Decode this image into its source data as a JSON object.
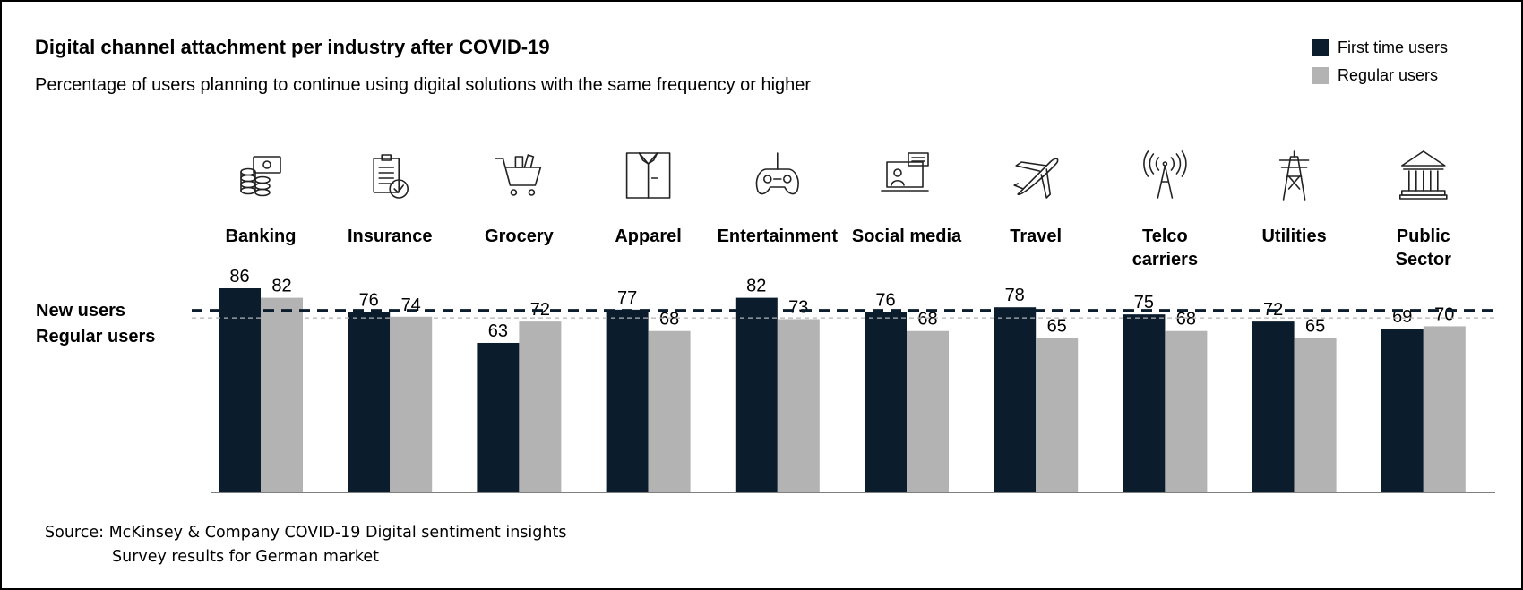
{
  "chart_data": {
    "type": "bar",
    "title": "Digital channel attachment per industry after COVID-19",
    "subtitle": "Percentage of users planning to continue using digital solutions with the same frequency or higher",
    "categories": [
      "Banking",
      "Insurance",
      "Grocery",
      "Apparel",
      "Entertainment",
      "Social media",
      "Travel",
      "Telco carriers",
      "Utilities",
      "Public Sector"
    ],
    "series": [
      {
        "name": "First time users",
        "color": "#0b1c2d",
        "values": [
          86,
          76,
          63,
          77,
          82,
          76,
          78,
          75,
          72,
          69
        ]
      },
      {
        "name": "Regular users",
        "color": "#b3b3b3",
        "values": [
          82,
          74,
          72,
          68,
          73,
          68,
          65,
          68,
          65,
          70
        ]
      }
    ],
    "reference_lines": [
      {
        "label": "New users",
        "value": 76.6,
        "style": "bold-dashed",
        "color": "#0b1c2d"
      },
      {
        "label": "Regular users",
        "value": 73.5,
        "style": "thin-dashed",
        "color": "#b3b3b3"
      }
    ],
    "icons": [
      "coins-banknote-icon",
      "clipboard-check-icon",
      "shopping-cart-icon",
      "shirt-icon",
      "gamepad-icon",
      "laptop-chat-icon",
      "airplane-icon",
      "antenna-tower-icon",
      "power-pylon-icon",
      "government-building-icon"
    ],
    "legend_position": "top-right",
    "grid": false
  },
  "source": {
    "line1": "Source: McKinsey & Company COVID-19 Digital sentiment insights",
    "line2": "Survey results for German market"
  }
}
